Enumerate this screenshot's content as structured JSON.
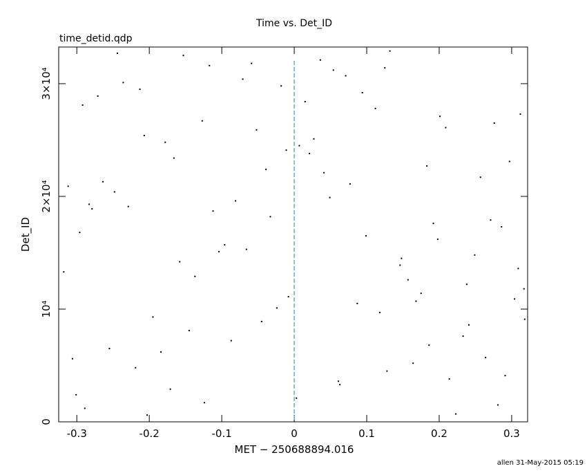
{
  "chart_data": {
    "type": "scatter",
    "title": "Time vs. Det_ID",
    "subtitle": "time_detid.qdp",
    "x_label": "MET − 250688894.016",
    "y_label": "Det_ID",
    "footer": "allen 31-May-2015 05:19",
    "color": "#000000",
    "vline_x": 0,
    "vline_color": "#3a9fb3",
    "xlim": [
      -0.325,
      0.322
    ],
    "ylim": [
      0,
      33250
    ],
    "xticks": [
      -0.3,
      -0.2,
      -0.1,
      0,
      0.1,
      0.2,
      0.3
    ],
    "yticks": [
      0,
      {
        "value": 10000,
        "label": "10⁴"
      },
      {
        "value": 20000,
        "label": "2×10⁴"
      },
      {
        "value": 30000,
        "label": "3×10⁴"
      }
    ],
    "x": [
      -0.301,
      -0.112,
      0.054,
      0.233,
      -0.207,
      0.146,
      -0.018,
      0.291,
      -0.264,
      0.087,
      0.198,
      -0.153,
      -0.045,
      0.312,
      -0.289,
      0.021,
      0.175,
      -0.081,
      0.264,
      -0.236,
      -0.127,
      0.063,
      0.249,
      -0.312,
      0.118,
      -0.059,
      0.286,
      -0.184,
      0.007,
      0.157,
      0.223,
      -0.271,
      -0.096,
      0.041,
      0.304,
      -0.219,
      0.132,
      -0.033,
      0.209,
      -0.145,
      -0.318,
      0.094,
      -0.171,
      0.271,
      -0.011,
      0.186,
      -0.248,
      0.036,
      0.317,
      -0.066,
      0.112,
      -0.195,
      0.257,
      -0.124,
      0.071,
      -0.296,
      0.164,
      -0.052,
      0.238,
      -0.229,
      -0.087,
      0.297,
      -0.158,
      0.015,
      0.214,
      -0.279,
      0.125,
      -0.024,
      0.183,
      -0.203,
      0.049,
      -0.137,
      0.276,
      -0.306,
      0.099,
      -0.071,
      0.241,
      -0.178,
      0.003,
      0.309,
      -0.244,
      0.168,
      -0.039,
      0.128,
      -0.283,
      0.201,
      -0.104,
      0.281,
      -0.213,
      0.077,
      0.027,
      -0.255,
      0.192,
      -0.117,
      0.318,
      -0.166,
      0.061,
      -0.292,
      0.148,
      -0.008
    ],
    "values": [
      2400,
      18700,
      31200,
      7600,
      25400,
      13900,
      29800,
      4100,
      21300,
      10500,
      16200,
      32500,
      8900,
      27300,
      1200,
      23800,
      11400,
      19600,
      5700,
      30100,
      26700,
      3300,
      14800,
      20900,
      9700,
      31800,
      17300,
      6200,
      24500,
      12600,
      700,
      28900,
      15700,
      22100,
      10900,
      4800,
      32900,
      18200,
      26100,
      8100,
      13300,
      29200,
      2900,
      17900,
      24100,
      6800,
      20400,
      32100,
      11800,
      15300,
      27800,
      9300,
      21700,
      1700,
      30700,
      16800,
      5200,
      25900,
      12200,
      19100,
      7200,
      23100,
      14200,
      28400,
      3800,
      18900,
      31400,
      10100,
      22700,
      600,
      19900,
      12900,
      26500,
      5600,
      16500,
      30400,
      8600,
      24800,
      2100,
      13600,
      32700,
      10700,
      22400,
      4500,
      19300,
      27100,
      15100,
      1500,
      29500,
      21100,
      25100,
      6500,
      17600,
      31600,
      9100,
      23400,
      3600,
      28100,
      14500,
      11100
    ]
  }
}
